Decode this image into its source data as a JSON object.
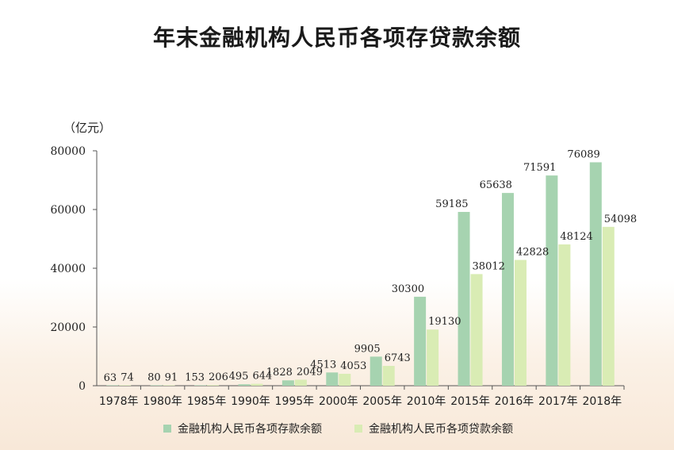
{
  "chart_data": {
    "type": "bar",
    "title": "年末金融机构人民币各项存贷款余额",
    "ylabel": "（亿元）",
    "xlabel": "",
    "ylim": [
      0,
      80000
    ],
    "yticks": [
      0,
      20000,
      40000,
      60000,
      80000
    ],
    "categories": [
      "1978年",
      "1980年",
      "1985年",
      "1990年",
      "1995年",
      "2000年",
      "2005年",
      "2010年",
      "2015年",
      "2016年",
      "2017年",
      "2018年"
    ],
    "series": [
      {
        "name": "金融机构人民币各项存款余额",
        "color": "#a6d3b0",
        "values": [
          63,
          80,
          153,
          495,
          1828,
          4513,
          9905,
          30300,
          59185,
          65638,
          71591,
          76089
        ]
      },
      {
        "name": "金融机构人民币各项贷款余额",
        "color": "#d9ecb4",
        "values": [
          74,
          91,
          206,
          644,
          2049,
          4053,
          6743,
          19130,
          38012,
          42828,
          48124,
          54098
        ]
      }
    ],
    "legend_position": "bottom",
    "grid": false
  }
}
